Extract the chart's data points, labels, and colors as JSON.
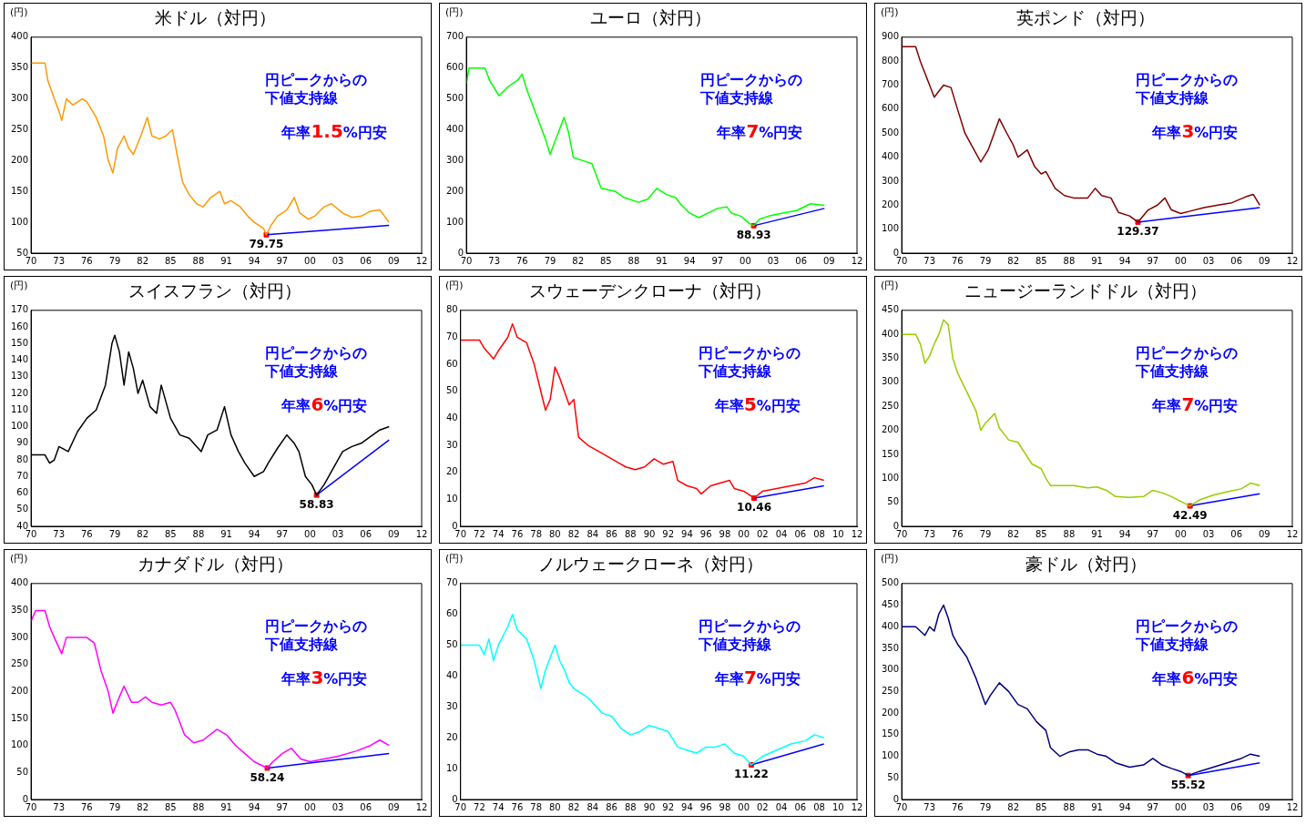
{
  "chart_data": [
    {
      "type": "line",
      "title": "米ドル（対円）",
      "ylabel": "(円)",
      "xlim": [
        1970,
        2012
      ],
      "ylim": [
        50,
        400
      ],
      "yticks": [
        50,
        100,
        150,
        200,
        250,
        300,
        350,
        400
      ],
      "xticks": [
        {
          "value": 1970,
          "label": "70"
        },
        {
          "value": 1973,
          "label": "73"
        },
        {
          "value": 1976,
          "label": "76"
        },
        {
          "value": 1979,
          "label": "79"
        },
        {
          "value": 1982,
          "label": "82"
        },
        {
          "value": 1985,
          "label": "85"
        },
        {
          "value": 1988,
          "label": "88"
        },
        {
          "value": 1991,
          "label": "91"
        },
        {
          "value": 1994,
          "label": "94"
        },
        {
          "value": 1997,
          "label": "97"
        },
        {
          "value": 2000,
          "label": "00"
        },
        {
          "value": 2003,
          "label": "03"
        },
        {
          "value": 2006,
          "label": "06"
        },
        {
          "value": 2009,
          "label": "09"
        },
        {
          "value": 2012,
          "label": "12"
        }
      ],
      "annotations": [
        "円ピークからの",
        "下値支持線",
        "年率1.5%円安"
      ],
      "series": [
        {
          "color": "#ff9900",
          "x": [
            1970,
            1971.5,
            1971.8,
            1972.5,
            1973,
            1973.3,
            1973.8,
            1974.5,
            1975.5,
            1976,
            1977,
            1977.8,
            1978.3,
            1978.8,
            1979.3,
            1980,
            1980.5,
            1981,
            1981.8,
            1982.5,
            1983,
            1983.8,
            1984.5,
            1985.2,
            1985.7,
            1986.3,
            1987,
            1987.8,
            1988.5,
            1989.3,
            1990.3,
            1990.8,
            1991.5,
            1992.5,
            1993.3,
            1994,
            1995,
            1995.3,
            1995.8,
            1996.5,
            1997.5,
            1998.3,
            1998.9,
            1999.8,
            2000.5,
            2001.5,
            2002.3,
            2003.5,
            2004.5,
            2005.5,
            2006.5,
            2007.5,
            2008.5
          ],
          "values": [
            358,
            358,
            330,
            300,
            280,
            265,
            300,
            290,
            300,
            295,
            270,
            240,
            200,
            180,
            220,
            240,
            220,
            210,
            240,
            270,
            240,
            235,
            240,
            250,
            210,
            165,
            145,
            130,
            125,
            140,
            150,
            130,
            135,
            125,
            110,
            100,
            90,
            79.75,
            95,
            110,
            120,
            140,
            115,
            105,
            110,
            125,
            130,
            115,
            108,
            110,
            118,
            120,
            100
          ]
        },
        {
          "color": "#0000ff",
          "x": [
            1995.3,
            2008.5
          ],
          "values": [
            79.75,
            95
          ]
        },
        {
          "type": "scatter",
          "color": "#ff0000",
          "marker": "square",
          "x": [
            1995.3
          ],
          "values": [
            79.75
          ],
          "value_labels": [
            "79.75"
          ]
        }
      ]
    },
    {
      "type": "line",
      "title": "ユーロ（対円）",
      "ylabel": "(円)",
      "xlim": [
        1970,
        2012
      ],
      "ylim": [
        0,
        700
      ],
      "yticks": [
        0,
        100,
        200,
        300,
        400,
        500,
        600,
        700
      ],
      "xticks": [
        {
          "value": 1970,
          "label": "70"
        },
        {
          "value": 1973,
          "label": "73"
        },
        {
          "value": 1976,
          "label": "76"
        },
        {
          "value": 1979,
          "label": "79"
        },
        {
          "value": 1982,
          "label": "82"
        },
        {
          "value": 1985,
          "label": "85"
        },
        {
          "value": 1988,
          "label": "88"
        },
        {
          "value": 1991,
          "label": "91"
        },
        {
          "value": 1994,
          "label": "94"
        },
        {
          "value": 1997,
          "label": "97"
        },
        {
          "value": 2000,
          "label": "00"
        },
        {
          "value": 2003,
          "label": "03"
        },
        {
          "value": 2006,
          "label": "06"
        },
        {
          "value": 2009,
          "label": "09"
        },
        {
          "value": 2012,
          "label": "12"
        }
      ],
      "annotations": [
        "円ピークからの",
        "下値支持線",
        "年率7%円安"
      ],
      "series": [
        {
          "color": "#00ff00",
          "x": [
            1970,
            1970.3,
            1972,
            1972.5,
            1973.5,
            1974.5,
            1975.5,
            1976,
            1976.5,
            1977.5,
            1978.5,
            1979,
            1979.5,
            1980.5,
            1981,
            1981.5,
            1982.5,
            1983.5,
            1984.5,
            1986,
            1987,
            1988.5,
            1989.5,
            1990.5,
            1991.5,
            1992.5,
            1993,
            1994,
            1995,
            1996,
            1997,
            1998,
            1998.5,
            1999.5,
            2000.5,
            2000.9,
            2001.5,
            2002.5,
            2004,
            2005.5,
            2007,
            2008.5
          ],
          "values": [
            550,
            600,
            600,
            560,
            510,
            540,
            560,
            580,
            530,
            450,
            370,
            320,
            360,
            440,
            390,
            310,
            300,
            290,
            210,
            200,
            180,
            165,
            175,
            210,
            190,
            180,
            160,
            130,
            115,
            130,
            145,
            150,
            130,
            120,
            95,
            88.93,
            110,
            120,
            130,
            138,
            160,
            155
          ]
        },
        {
          "color": "#0000ff",
          "x": [
            2000.9,
            2008.5
          ],
          "values": [
            88.93,
            145
          ]
        },
        {
          "type": "scatter",
          "color": "#ff0000",
          "marker": "square",
          "x": [
            2000.9
          ],
          "values": [
            88.93
          ],
          "value_labels": [
            "88.93"
          ]
        }
      ]
    },
    {
      "type": "line",
      "title": "英ポンド（対円）",
      "ylabel": "(円)",
      "xlim": [
        1970,
        2012
      ],
      "ylim": [
        0,
        900
      ],
      "yticks": [
        0,
        100,
        200,
        300,
        400,
        500,
        600,
        700,
        800,
        900
      ],
      "xticks": [
        {
          "value": 1970,
          "label": "70"
        },
        {
          "value": 1973,
          "label": "73"
        },
        {
          "value": 1976,
          "label": "76"
        },
        {
          "value": 1979,
          "label": "79"
        },
        {
          "value": 1982,
          "label": "82"
        },
        {
          "value": 1985,
          "label": "85"
        },
        {
          "value": 1988,
          "label": "88"
        },
        {
          "value": 1991,
          "label": "91"
        },
        {
          "value": 1994,
          "label": "94"
        },
        {
          "value": 1997,
          "label": "97"
        },
        {
          "value": 2000,
          "label": "00"
        },
        {
          "value": 2003,
          "label": "03"
        },
        {
          "value": 2006,
          "label": "06"
        },
        {
          "value": 2009,
          "label": "09"
        },
        {
          "value": 2012,
          "label": "12"
        }
      ],
      "annotations": [
        "円ピークからの",
        "下値支持線",
        "年率3%円安"
      ],
      "series": [
        {
          "color": "#800000",
          "x": [
            1970,
            1971.5,
            1972,
            1972.5,
            1973,
            1973.5,
            1974.5,
            1975.3,
            1976,
            1976.8,
            1977.5,
            1978.5,
            1979.3,
            1980.5,
            1981.3,
            1982,
            1982.5,
            1983.5,
            1984.3,
            1985,
            1985.5,
            1986.5,
            1987.5,
            1988.5,
            1990,
            1990.8,
            1991.5,
            1992.5,
            1993.3,
            1994.5,
            1995.4,
            1996.5,
            1997.5,
            1998.3,
            1999,
            2000,
            2001,
            2002.5,
            2004,
            2005.5,
            2007,
            2007.8,
            2008.5
          ],
          "values": [
            860,
            860,
            800,
            750,
            700,
            650,
            700,
            690,
            600,
            500,
            450,
            380,
            430,
            560,
            500,
            450,
            400,
            430,
            360,
            330,
            340,
            270,
            240,
            230,
            230,
            270,
            240,
            230,
            170,
            155,
            129.37,
            180,
            200,
            230,
            180,
            165,
            175,
            190,
            200,
            210,
            235,
            245,
            200
          ]
        },
        {
          "color": "#0000ff",
          "x": [
            1995.4,
            2008.5
          ],
          "values": [
            129.37,
            190
          ]
        },
        {
          "type": "scatter",
          "color": "#ff0000",
          "marker": "square",
          "x": [
            1995.4
          ],
          "values": [
            129.37
          ],
          "value_labels": [
            "129.37"
          ]
        }
      ]
    },
    {
      "type": "line",
      "title": "スイスフラン（対円）",
      "ylabel": "(円)",
      "xlim": [
        1970,
        2012
      ],
      "ylim": [
        40,
        170
      ],
      "yticks": [
        40,
        50,
        60,
        70,
        80,
        90,
        100,
        110,
        120,
        130,
        140,
        150,
        160,
        170
      ],
      "xticks": [
        {
          "value": 1970,
          "label": "70"
        },
        {
          "value": 1973,
          "label": "73"
        },
        {
          "value": 1976,
          "label": "76"
        },
        {
          "value": 1979,
          "label": "79"
        },
        {
          "value": 1982,
          "label": "82"
        },
        {
          "value": 1985,
          "label": "85"
        },
        {
          "value": 1988,
          "label": "88"
        },
        {
          "value": 1991,
          "label": "91"
        },
        {
          "value": 1994,
          "label": "94"
        },
        {
          "value": 1997,
          "label": "97"
        },
        {
          "value": 2000,
          "label": "00"
        },
        {
          "value": 2003,
          "label": "03"
        },
        {
          "value": 2006,
          "label": "06"
        },
        {
          "value": 2009,
          "label": "09"
        },
        {
          "value": 2012,
          "label": "12"
        }
      ],
      "annotations": [
        "円ピークからの",
        "下値支持線",
        "年率6%円安"
      ],
      "series": [
        {
          "color": "#000000",
          "x": [
            1970,
            1971.5,
            1972,
            1972.5,
            1973,
            1974,
            1975,
            1976,
            1977,
            1978,
            1978.7,
            1979,
            1979.5,
            1980,
            1980.5,
            1981,
            1981.5,
            1982,
            1982.8,
            1983.5,
            1984,
            1985,
            1986,
            1987,
            1988.3,
            1989,
            1990,
            1990.8,
            1991.5,
            1992.3,
            1993,
            1994,
            1995,
            1995.5,
            1996.5,
            1997.5,
            1998.3,
            1998.8,
            1999.5,
            2000.2,
            2000.7,
            2001.5,
            2002.5,
            2003.5,
            2004.5,
            2005.5,
            2006.5,
            2007.5,
            2008.5
          ],
          "values": [
            83,
            83,
            78,
            80,
            88,
            85,
            97,
            105,
            110,
            125,
            150,
            155,
            145,
            125,
            145,
            135,
            120,
            128,
            112,
            108,
            125,
            105,
            95,
            93,
            85,
            95,
            98,
            112,
            95,
            85,
            78,
            70,
            73,
            78,
            87,
            95,
            90,
            85,
            70,
            65,
            58.83,
            65,
            75,
            85,
            88,
            90,
            94,
            98,
            100
          ]
        },
        {
          "color": "#0000ff",
          "x": [
            2000.7,
            2008.5
          ],
          "values": [
            58.83,
            92
          ]
        },
        {
          "type": "scatter",
          "color": "#ff0000",
          "marker": "square",
          "x": [
            2000.7
          ],
          "values": [
            58.83
          ],
          "value_labels": [
            "58.83"
          ]
        }
      ]
    },
    {
      "type": "line",
      "title": "スウェーデンクローナ（対円）",
      "ylabel": "(円)",
      "xlim": [
        1970,
        2012
      ],
      "ylim": [
        0,
        80
      ],
      "yticks": [
        0,
        10,
        20,
        30,
        40,
        50,
        60,
        70,
        80
      ],
      "xticks": [
        {
          "value": 1970,
          "label": "70"
        },
        {
          "value": 1972,
          "label": "72"
        },
        {
          "value": 1974,
          "label": "74"
        },
        {
          "value": 1976,
          "label": "76"
        },
        {
          "value": 1978,
          "label": "78"
        },
        {
          "value": 1980,
          "label": "80"
        },
        {
          "value": 1982,
          "label": "82"
        },
        {
          "value": 1984,
          "label": "84"
        },
        {
          "value": 1986,
          "label": "86"
        },
        {
          "value": 1988,
          "label": "88"
        },
        {
          "value": 1990,
          "label": "90"
        },
        {
          "value": 1992,
          "label": "92"
        },
        {
          "value": 1994,
          "label": "94"
        },
        {
          "value": 1996,
          "label": "96"
        },
        {
          "value": 1998,
          "label": "98"
        },
        {
          "value": 2000,
          "label": "00"
        },
        {
          "value": 2002,
          "label": "02"
        },
        {
          "value": 2004,
          "label": "04"
        },
        {
          "value": 2006,
          "label": "06"
        },
        {
          "value": 2008,
          "label": "08"
        },
        {
          "value": 2010,
          "label": "10"
        },
        {
          "value": 2012,
          "label": "12"
        }
      ],
      "annotations": [
        "円ピークからの",
        "下値支持線",
        "年率5%円安"
      ],
      "series": [
        {
          "color": "#ff0000",
          "x": [
            1970,
            1972,
            1972.5,
            1973.5,
            1974,
            1975,
            1975.5,
            1976,
            1977,
            1977.8,
            1978.5,
            1979,
            1979.5,
            1980,
            1980.5,
            1981,
            1981.5,
            1982,
            1982.5,
            1983.5,
            1985,
            1986.5,
            1987.5,
            1988.5,
            1989.5,
            1990.5,
            1991.5,
            1992.5,
            1993,
            1994,
            1995,
            1995.5,
            1996.5,
            1997.5,
            1998.5,
            1999,
            2000,
            2001.1,
            2002,
            2003.5,
            2005,
            2006.5,
            2007.5,
            2008.5
          ],
          "values": [
            69,
            69,
            66,
            62,
            65,
            70,
            75,
            70,
            68,
            60,
            50,
            43,
            47,
            59,
            55,
            50,
            45,
            47,
            33,
            30,
            27,
            24,
            22,
            21,
            22,
            25,
            23,
            24,
            17,
            15,
            14,
            12,
            15,
            16,
            17,
            14,
            13,
            10.46,
            13,
            14,
            15,
            16,
            18,
            17
          ]
        },
        {
          "color": "#0000ff",
          "x": [
            2001.1,
            2008.5
          ],
          "values": [
            10.46,
            15
          ]
        },
        {
          "type": "scatter",
          "color": "#ff0000",
          "marker": "square",
          "x": [
            2001.1
          ],
          "values": [
            10.46
          ],
          "value_labels": [
            "10.46"
          ]
        }
      ]
    },
    {
      "type": "line",
      "title": "ニュージーランドドル（対円）",
      "ylabel": "(円)",
      "xlim": [
        1970,
        2012
      ],
      "ylim": [
        0,
        450
      ],
      "yticks": [
        0,
        50,
        100,
        150,
        200,
        250,
        300,
        350,
        400,
        450
      ],
      "xticks": [
        {
          "value": 1970,
          "label": "70"
        },
        {
          "value": 1973,
          "label": "73"
        },
        {
          "value": 1976,
          "label": "76"
        },
        {
          "value": 1979,
          "label": "79"
        },
        {
          "value": 1982,
          "label": "82"
        },
        {
          "value": 1985,
          "label": "85"
        },
        {
          "value": 1988,
          "label": "88"
        },
        {
          "value": 1991,
          "label": "91"
        },
        {
          "value": 1994,
          "label": "94"
        },
        {
          "value": 1997,
          "label": "97"
        },
        {
          "value": 2000,
          "label": "00"
        },
        {
          "value": 2003,
          "label": "03"
        },
        {
          "value": 2006,
          "label": "06"
        },
        {
          "value": 2009,
          "label": "09"
        },
        {
          "value": 2012,
          "label": "12"
        }
      ],
      "annotations": [
        "円ピークからの",
        "下値支持線",
        "年率7%円安"
      ],
      "series": [
        {
          "color": "#99cc00",
          "x": [
            1970,
            1971.5,
            1972,
            1972.5,
            1973,
            1973.5,
            1974,
            1974.5,
            1975,
            1975.5,
            1976,
            1977,
            1978,
            1978.5,
            1979,
            1980,
            1980.5,
            1981.5,
            1982.5,
            1983,
            1984,
            1985,
            1985.5,
            1986,
            1987,
            1988.5,
            1990,
            1991,
            1992,
            1993,
            1994.5,
            1996,
            1997,
            1998,
            1999,
            2000,
            2001,
            2002,
            2003.5,
            2005,
            2006.5,
            2007.5,
            2008.5
          ],
          "values": [
            400,
            400,
            380,
            340,
            355,
            380,
            400,
            430,
            420,
            350,
            320,
            280,
            240,
            200,
            215,
            235,
            205,
            180,
            175,
            160,
            130,
            120,
            100,
            85,
            85,
            85,
            80,
            82,
            75,
            62,
            60,
            62,
            75,
            70,
            62,
            52,
            42.49,
            55,
            65,
            72,
            78,
            90,
            85
          ]
        },
        {
          "color": "#0000ff",
          "x": [
            2001,
            2008.5
          ],
          "values": [
            42.49,
            68
          ]
        },
        {
          "type": "scatter",
          "color": "#ff0000",
          "marker": "square",
          "x": [
            2001
          ],
          "values": [
            42.49
          ],
          "value_labels": [
            "42.49"
          ]
        }
      ]
    },
    {
      "type": "line",
      "title": "カナダドル（対円）",
      "ylabel": "(円)",
      "xlim": [
        1970,
        2012
      ],
      "ylim": [
        0,
        400
      ],
      "yticks": [
        0,
        50,
        100,
        150,
        200,
        250,
        300,
        350,
        400
      ],
      "xticks": [
        {
          "value": 1970,
          "label": "70"
        },
        {
          "value": 1973,
          "label": "73"
        },
        {
          "value": 1976,
          "label": "76"
        },
        {
          "value": 1979,
          "label": "79"
        },
        {
          "value": 1982,
          "label": "82"
        },
        {
          "value": 1985,
          "label": "85"
        },
        {
          "value": 1988,
          "label": "88"
        },
        {
          "value": 1991,
          "label": "91"
        },
        {
          "value": 1994,
          "label": "94"
        },
        {
          "value": 1997,
          "label": "97"
        },
        {
          "value": 2000,
          "label": "00"
        },
        {
          "value": 2003,
          "label": "03"
        },
        {
          "value": 2006,
          "label": "06"
        },
        {
          "value": 2009,
          "label": "09"
        },
        {
          "value": 2012,
          "label": "12"
        }
      ],
      "annotations": [
        "円ピークからの",
        "下値支持線",
        "年率3%円安"
      ],
      "series": [
        {
          "color": "#ff00ff",
          "x": [
            1970,
            1970.5,
            1971.5,
            1972,
            1972.5,
            1973.3,
            1973.8,
            1975,
            1976,
            1976.8,
            1977.5,
            1978.3,
            1978.8,
            1979.5,
            1980,
            1980.8,
            1981.5,
            1982.3,
            1983,
            1984,
            1985,
            1985.5,
            1986.5,
            1987.5,
            1988.5,
            1990,
            1991,
            1992,
            1993,
            1994,
            1995.4,
            1996,
            1997,
            1998,
            1999,
            2000,
            2001.5,
            2003,
            2005,
            2006.5,
            2007.5,
            2008.5
          ],
          "values": [
            330,
            350,
            350,
            320,
            300,
            270,
            300,
            300,
            300,
            290,
            240,
            200,
            160,
            190,
            210,
            180,
            180,
            190,
            180,
            175,
            180,
            165,
            120,
            105,
            110,
            130,
            120,
            100,
            85,
            70,
            58.24,
            70,
            85,
            95,
            75,
            70,
            75,
            80,
            90,
            100,
            110,
            100
          ]
        },
        {
          "color": "#0000ff",
          "x": [
            1995.4,
            2008.5
          ],
          "values": [
            58.24,
            85
          ]
        },
        {
          "type": "scatter",
          "color": "#ff0000",
          "marker": "square",
          "x": [
            1995.4
          ],
          "values": [
            58.24
          ],
          "value_labels": [
            "58.24"
          ]
        }
      ]
    },
    {
      "type": "line",
      "title": "ノルウェークローネ（対円）",
      "ylabel": "(円)",
      "xlim": [
        1970,
        2012
      ],
      "ylim": [
        0,
        70
      ],
      "yticks": [
        0,
        10,
        20,
        30,
        40,
        50,
        60,
        70
      ],
      "xticks": [
        {
          "value": 1970,
          "label": "70"
        },
        {
          "value": 1972,
          "label": "72"
        },
        {
          "value": 1974,
          "label": "74"
        },
        {
          "value": 1976,
          "label": "76"
        },
        {
          "value": 1978,
          "label": "78"
        },
        {
          "value": 1980,
          "label": "80"
        },
        {
          "value": 1982,
          "label": "82"
        },
        {
          "value": 1984,
          "label": "84"
        },
        {
          "value": 1986,
          "label": "86"
        },
        {
          "value": 1988,
          "label": "88"
        },
        {
          "value": 1990,
          "label": "90"
        },
        {
          "value": 1992,
          "label": "92"
        },
        {
          "value": 1994,
          "label": "94"
        },
        {
          "value": 1996,
          "label": "96"
        },
        {
          "value": 1998,
          "label": "98"
        },
        {
          "value": 2000,
          "label": "00"
        },
        {
          "value": 2002,
          "label": "02"
        },
        {
          "value": 2004,
          "label": "04"
        },
        {
          "value": 2006,
          "label": "06"
        },
        {
          "value": 2008,
          "label": "08"
        },
        {
          "value": 2010,
          "label": "10"
        },
        {
          "value": 2012,
          "label": "12"
        }
      ],
      "annotations": [
        "円ピークからの",
        "下値支持線",
        "年率7%円安"
      ],
      "series": [
        {
          "color": "#00ffff",
          "x": [
            1970,
            1972,
            1972.5,
            1973,
            1973.5,
            1974,
            1975,
            1975.5,
            1976,
            1977,
            1977.8,
            1978.5,
            1979,
            1980,
            1980.5,
            1981,
            1981.5,
            1982,
            1983.5,
            1985,
            1986,
            1987,
            1988,
            1989,
            1990,
            1991,
            1992,
            1993,
            1994,
            1995,
            1996,
            1997,
            1998,
            1999,
            2000,
            2000.8,
            2002,
            2003.5,
            2005,
            2006.5,
            2007.5,
            2008.5
          ],
          "values": [
            50,
            50,
            47,
            52,
            45,
            50,
            56,
            60,
            55,
            52,
            45,
            36,
            42,
            50,
            45,
            42,
            38,
            36,
            33,
            28,
            27,
            23,
            21,
            22,
            24,
            23,
            22,
            17,
            16,
            15,
            17,
            17,
            18,
            15,
            14,
            11.22,
            14,
            16,
            18,
            19,
            21,
            20
          ]
        },
        {
          "color": "#0000ff",
          "x": [
            2000.8,
            2008.5
          ],
          "values": [
            11.22,
            18
          ]
        },
        {
          "type": "scatter",
          "color": "#ff0000",
          "marker": "square",
          "x": [
            2000.8
          ],
          "values": [
            11.22
          ],
          "value_labels": [
            "11.22"
          ]
        }
      ]
    },
    {
      "type": "line",
      "title": "豪ドル（対円）",
      "ylabel": "(円)",
      "xlim": [
        1970,
        2012
      ],
      "ylim": [
        0,
        500
      ],
      "yticks": [
        0,
        50,
        100,
        150,
        200,
        250,
        300,
        350,
        400,
        450,
        500
      ],
      "xticks": [
        {
          "value": 1970,
          "label": "70"
        },
        {
          "value": 1973,
          "label": "73"
        },
        {
          "value": 1976,
          "label": "76"
        },
        {
          "value": 1979,
          "label": "79"
        },
        {
          "value": 1982,
          "label": "82"
        },
        {
          "value": 1985,
          "label": "85"
        },
        {
          "value": 1988,
          "label": "88"
        },
        {
          "value": 1991,
          "label": "91"
        },
        {
          "value": 1994,
          "label": "94"
        },
        {
          "value": 1997,
          "label": "97"
        },
        {
          "value": 2000,
          "label": "00"
        },
        {
          "value": 2003,
          "label": "03"
        },
        {
          "value": 2006,
          "label": "06"
        },
        {
          "value": 2009,
          "label": "09"
        },
        {
          "value": 2012,
          "label": "12"
        }
      ],
      "annotations": [
        "円ピークからの",
        "下値支持線",
        "年率6%円安"
      ],
      "series": [
        {
          "color": "#000080",
          "x": [
            1970,
            1971.5,
            1972.5,
            1973,
            1973.5,
            1974,
            1974.5,
            1975,
            1975.5,
            1976,
            1977,
            1978,
            1979,
            1979.5,
            1980.5,
            1981.5,
            1982.5,
            1983.5,
            1984.5,
            1985.5,
            1986,
            1987,
            1988,
            1989,
            1990,
            1991,
            1992,
            1993,
            1994.5,
            1996,
            1997,
            1998,
            1999,
            2000,
            2000.8,
            2002,
            2003.5,
            2005,
            2006.5,
            2007.5,
            2008.5
          ],
          "values": [
            400,
            400,
            380,
            400,
            390,
            430,
            450,
            420,
            380,
            360,
            330,
            280,
            220,
            240,
            270,
            250,
            220,
            210,
            180,
            160,
            120,
            100,
            110,
            115,
            115,
            105,
            100,
            85,
            75,
            80,
            95,
            80,
            72,
            65,
            55.52,
            65,
            75,
            85,
            95,
            105,
            100
          ]
        },
        {
          "color": "#0000ff",
          "x": [
            2000.8,
            2008.5
          ],
          "values": [
            55.52,
            85
          ]
        },
        {
          "type": "scatter",
          "color": "#ff0000",
          "marker": "square",
          "x": [
            2000.8
          ],
          "values": [
            55.52
          ],
          "value_labels": [
            "55.52"
          ]
        }
      ]
    }
  ]
}
